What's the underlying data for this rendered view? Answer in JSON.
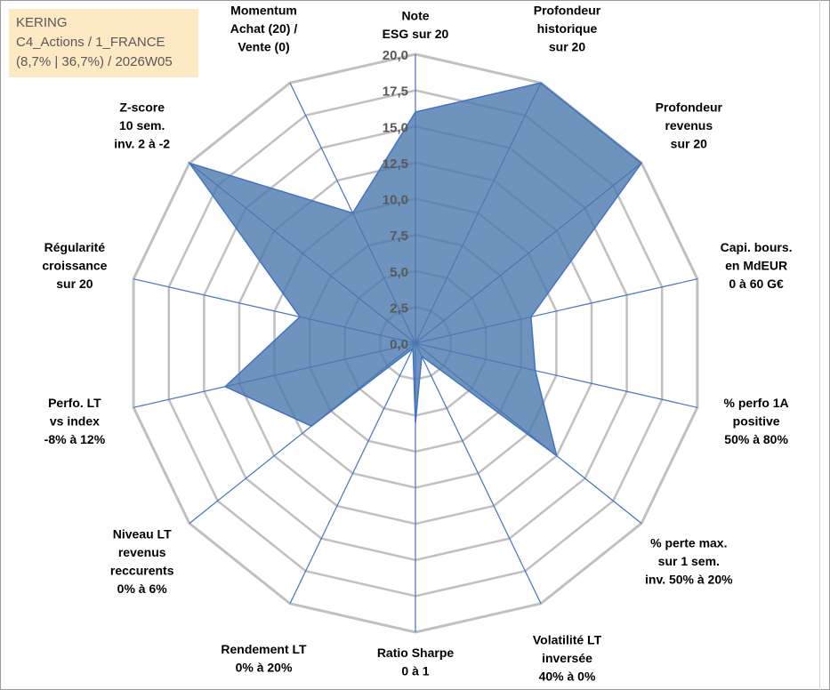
{
  "header": {
    "company": "KERING",
    "portfolio": "C4_Actions / 1_FRANCE",
    "period": "(8,7% | 36,7%) / 2026W05"
  },
  "colors": {
    "fill": "#4a78ad",
    "stroke": "#4472c4",
    "grid": "#c0c0c0",
    "title_bg": "#fde9c4"
  },
  "chart_data": {
    "type": "radar",
    "title": "",
    "rlim": [
      0,
      20
    ],
    "ticks": [
      "0,0",
      "2,5",
      "5,0",
      "7,5",
      "10,0",
      "12,5",
      "15,0",
      "17,5",
      "20,0"
    ],
    "categories": [
      [
        "Note",
        "ESG sur 20"
      ],
      [
        "Profondeur",
        "historique",
        "sur 20"
      ],
      [
        "Profondeur",
        "revenus",
        "sur 20"
      ],
      [
        "Capi. bours.",
        "en MdEUR",
        "0 à 60 G€"
      ],
      [
        "% perfo 1A",
        "positive",
        "50% à 80%"
      ],
      [
        "% perte max.",
        "sur 1 sem.",
        "inv. 50% à 20%"
      ],
      [
        "Volatilité LT",
        "inversée",
        "40% à 0%"
      ],
      [
        "Ratio Sharpe",
        "0 à 1"
      ],
      [
        "Rendement LT",
        "0% à 20%"
      ],
      [
        "Niveau LT",
        "revenus",
        "reccurents",
        "0% à 6%"
      ],
      [
        "Perfo. LT",
        "vs index",
        "-8% à 12%"
      ],
      [
        "Régularité",
        "croissance",
        "sur 20"
      ],
      [
        "Z-score",
        "10 sem.",
        "inv. 2 à -2"
      ],
      [
        "Momentum",
        "Achat (20) /",
        "Vente (0)"
      ]
    ],
    "series": [
      {
        "name": "KERING",
        "values": [
          16,
          20,
          20,
          8.2,
          8.5,
          12.5,
          1,
          5.5,
          0.4,
          9.2,
          13.5,
          8.2,
          20,
          10
        ]
      }
    ]
  }
}
